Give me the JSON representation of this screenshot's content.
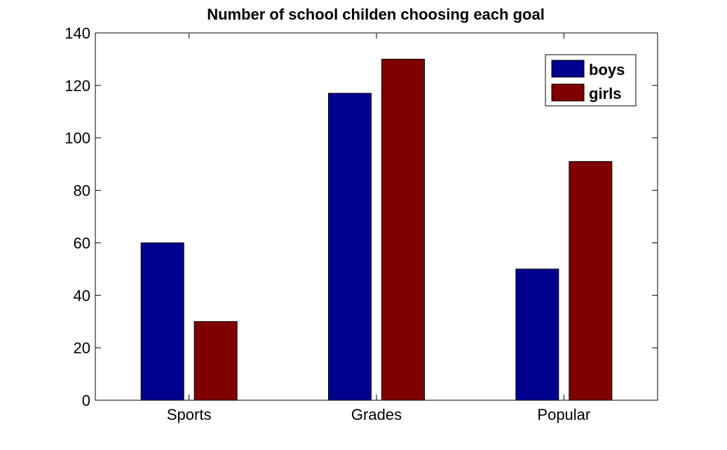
{
  "chart_data": {
    "type": "bar",
    "title": "Number of school childen choosing each goal",
    "xlabel": "",
    "ylabel": "",
    "categories": [
      "Sports",
      "Grades",
      "Popular"
    ],
    "series": [
      {
        "name": "boys",
        "values": [
          60,
          117,
          50
        ],
        "color": "#00008f"
      },
      {
        "name": "girls",
        "values": [
          30,
          130,
          91
        ],
        "color": "#800000"
      }
    ],
    "ylim": [
      0,
      140
    ],
    "yticks": [
      0,
      20,
      40,
      60,
      80,
      100,
      120,
      140
    ],
    "yticklabels": [
      "0",
      "20",
      "40",
      "60",
      "80",
      "100",
      "120",
      "140"
    ],
    "grid": false,
    "legend_position": "top-right"
  }
}
